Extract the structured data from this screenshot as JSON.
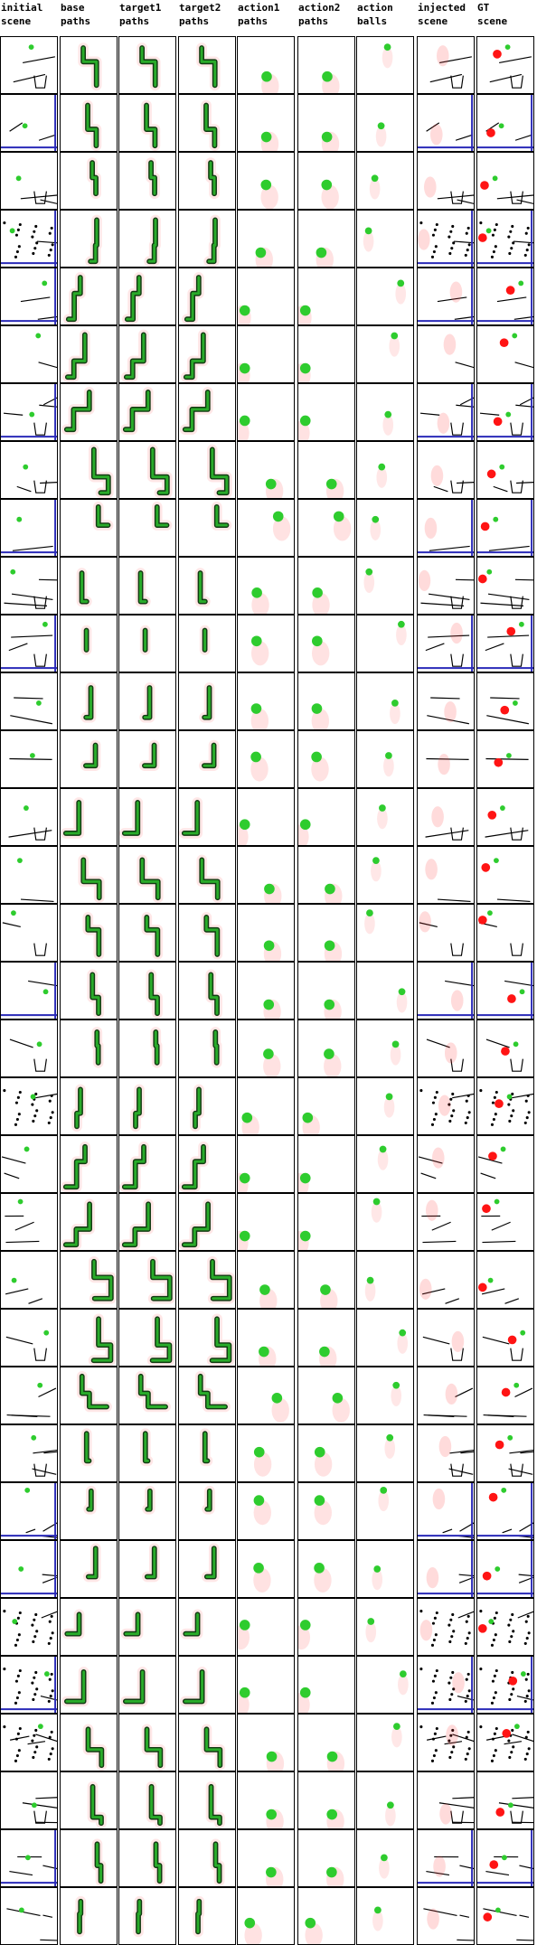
{
  "columns": [
    {
      "key": "initial",
      "label": "initial\nscene",
      "kind": "scene"
    },
    {
      "key": "base",
      "label": "base\npaths",
      "kind": "path"
    },
    {
      "key": "target1",
      "label": "target1\npaths",
      "kind": "path"
    },
    {
      "key": "target2",
      "label": "target2\npaths",
      "kind": "path"
    },
    {
      "key": "action1",
      "label": "action1\npaths",
      "kind": "action"
    },
    {
      "key": "action2",
      "label": "action2\npaths",
      "kind": "action"
    },
    {
      "key": "balls",
      "label": "action\nballs",
      "kind": "balls"
    },
    {
      "key": "injected",
      "label": "injected\nscene",
      "kind": "injected"
    },
    {
      "key": "gt",
      "label": "GT\nscene",
      "kind": "gt"
    }
  ],
  "row_count": 33,
  "colors": {
    "path_dark": "#123a12",
    "path_green": "#2fbf2f",
    "glow_red": "#ff3a3a",
    "ball_green": "#2ecc2e",
    "ball_red": "#ff1414",
    "ball_blue": "#1c1cd8",
    "wall_blue": "#2a2ab8",
    "static_black": "#000000"
  },
  "icons": {
    "ball": "filled-circle",
    "bin": "open-container",
    "wall": "line-segment"
  }
}
